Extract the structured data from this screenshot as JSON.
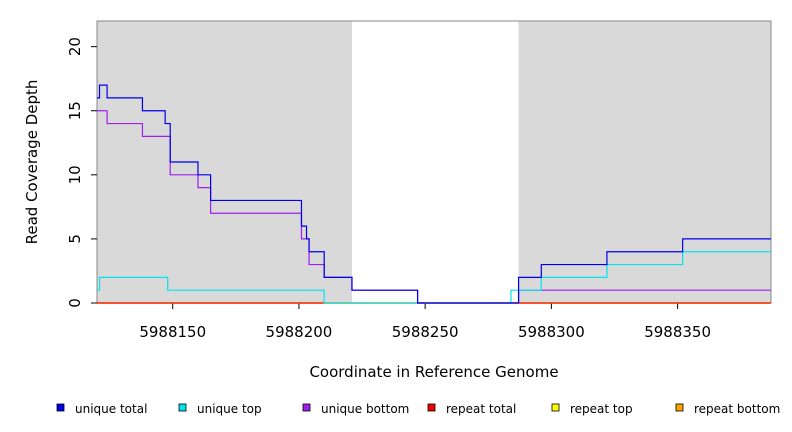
{
  "chart_data": {
    "type": "line",
    "step": true,
    "title": "",
    "xlabel": "Coordinate in Reference Genome",
    "ylabel": "Read Coverage Depth",
    "xlim": [
      5988120,
      5988387
    ],
    "ylim": [
      0,
      22
    ],
    "xticks": [
      5988150,
      5988200,
      5988250,
      5988300,
      5988350
    ],
    "yticks": [
      0,
      5,
      10,
      15,
      20
    ],
    "shaded_regions": [
      {
        "x0": 5988120,
        "x1": 5988221,
        "color": "#d9d9d9"
      },
      {
        "x0": 5988287,
        "x1": 5988387,
        "color": "#d9d9d9"
      }
    ],
    "legend_position": "bottom",
    "series": [
      {
        "name": "unique total",
        "color": "#0000ee",
        "x": [
          5988120,
          5988121,
          5988124,
          5988138,
          5988147,
          5988149,
          5988160,
          5988165,
          5988201,
          5988203,
          5988204,
          5988210,
          5988221,
          5988247,
          5988287,
          5988296,
          5988322,
          5988352,
          5988387
        ],
        "y": [
          16,
          17,
          16,
          15,
          14,
          11,
          10,
          8,
          6,
          5,
          4,
          2,
          1,
          0,
          2,
          3,
          4,
          5,
          5
        ]
      },
      {
        "name": "unique top",
        "color": "#00e5ee",
        "x": [
          5988120,
          5988121,
          5988148,
          5988210,
          5988221,
          5988284,
          5988287,
          5988296,
          5988322,
          5988352,
          5988387
        ],
        "y": [
          1,
          2,
          1,
          0,
          0,
          1,
          1,
          2,
          3,
          4,
          4
        ]
      },
      {
        "name": "unique bottom",
        "color": "#a020f0",
        "x": [
          5988120,
          5988124,
          5988138,
          5988149,
          5988160,
          5988165,
          5988201,
          5988204,
          5988210,
          5988221,
          5988247,
          5988287,
          5988387
        ],
        "y": [
          15,
          14,
          13,
          10,
          9,
          7,
          5,
          3,
          2,
          1,
          0,
          1,
          1
        ]
      },
      {
        "name": "repeat total",
        "color": "#ee0000",
        "x": [
          5988120,
          5988387
        ],
        "y": [
          0,
          0
        ]
      },
      {
        "name": "repeat top",
        "color": "#ffff00",
        "x": [
          5988120,
          5988387
        ],
        "y": [
          0,
          0
        ]
      },
      {
        "name": "repeat bottom",
        "color": "#ffa500",
        "x": [
          5988120,
          5988387
        ],
        "y": [
          0,
          0
        ]
      }
    ]
  }
}
